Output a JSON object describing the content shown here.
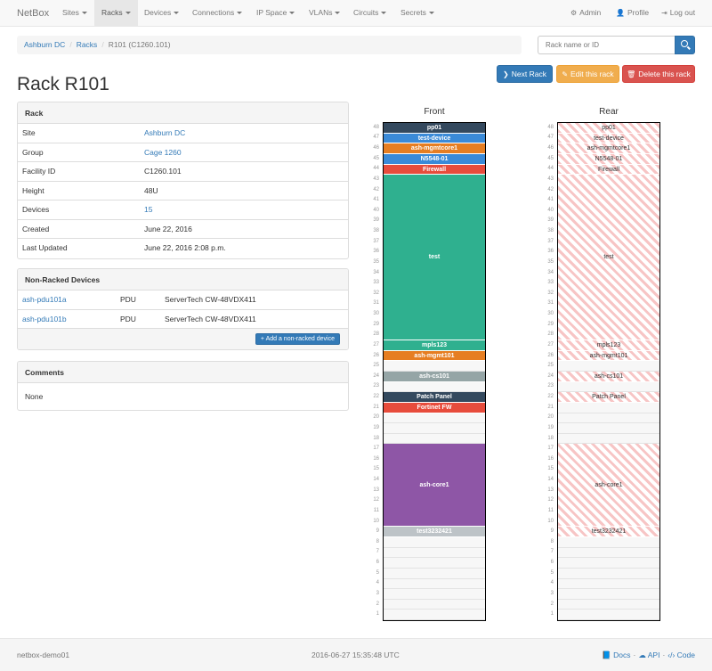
{
  "navbar": {
    "brand": "NetBox",
    "menus": [
      {
        "label": "Sites",
        "name": "nav-sites"
      },
      {
        "label": "Racks",
        "name": "nav-racks"
      },
      {
        "label": "Devices",
        "name": "nav-devices"
      },
      {
        "label": "Connections",
        "name": "nav-connections"
      },
      {
        "label": "IP Space",
        "name": "nav-ip-space"
      },
      {
        "label": "VLANs",
        "name": "nav-vlans"
      },
      {
        "label": "Circuits",
        "name": "nav-circuits"
      },
      {
        "label": "Secrets",
        "name": "nav-secrets"
      }
    ],
    "active_menu": "Racks",
    "admin": "Admin",
    "profile": "Profile",
    "logout": "Log out"
  },
  "breadcrumb": {
    "site": "Ashburn DC",
    "racks": "Racks",
    "current": "R101 (C1260.101)"
  },
  "search": {
    "placeholder": "Rack name or ID"
  },
  "actions": {
    "next_rack": "Next Rack",
    "edit_rack": "Edit this rack",
    "delete_rack": "Delete this rack"
  },
  "page_title": "Rack R101",
  "rack_panel": {
    "heading": "Rack",
    "rows": [
      {
        "label": "Site",
        "value": "Ashburn DC",
        "link": true
      },
      {
        "label": "Group",
        "value": "Cage 1260",
        "link": true
      },
      {
        "label": "Facility ID",
        "value": "C1260.101",
        "link": false
      },
      {
        "label": "Height",
        "value": "48U",
        "link": false
      },
      {
        "label": "Devices",
        "value": "15",
        "link": true
      },
      {
        "label": "Created",
        "value": "June 22, 2016",
        "link": false
      },
      {
        "label": "Last Updated",
        "value": "June 22, 2016 2:08 p.m.",
        "link": false
      }
    ]
  },
  "nonracked_panel": {
    "heading": "Non-Racked Devices",
    "rows": [
      {
        "name": "ash-pdu101a",
        "role": "PDU",
        "type": "ServerTech CW-48VDX411"
      },
      {
        "name": "ash-pdu101b",
        "role": "PDU",
        "type": "ServerTech CW-48VDX411"
      }
    ],
    "add_button": "Add a non-racked device"
  },
  "comments_panel": {
    "heading": "Comments",
    "body": "None"
  },
  "rack_elevation": {
    "front_label": "Front",
    "rear_label": "Rear",
    "height_units": 48,
    "front_devices": [
      {
        "name": "pp01",
        "top_u": 48,
        "units": 1,
        "color": "#34495e"
      },
      {
        "name": "test-device",
        "top_u": 47,
        "units": 1,
        "color": "#3a8ad8"
      },
      {
        "name": "ash-mgmtcore1",
        "top_u": 46,
        "units": 1,
        "color": "#e67e22"
      },
      {
        "name": "N5548-01",
        "top_u": 45,
        "units": 1,
        "color": "#3a8ad8"
      },
      {
        "name": "Firewall",
        "top_u": 44,
        "units": 1,
        "color": "#e74c3c"
      },
      {
        "name": "test",
        "top_u": 43,
        "units": 16,
        "color": "#2fb08f"
      },
      {
        "name": "mpls123",
        "top_u": 27,
        "units": 1,
        "color": "#2fb08f"
      },
      {
        "name": "ash-mgmt101",
        "top_u": 26,
        "units": 1,
        "color": "#e67e22"
      },
      {
        "name": "ash-cs101",
        "top_u": 24,
        "units": 1,
        "color": "#95a5a6"
      },
      {
        "name": "Patch Panel",
        "top_u": 22,
        "units": 1,
        "color": "#34495e"
      },
      {
        "name": "Fortinet FW",
        "top_u": 21,
        "units": 1,
        "color": "#e74c3c"
      },
      {
        "name": "ash-core1",
        "top_u": 17,
        "units": 8,
        "color": "#8e56a6"
      },
      {
        "name": "test3232421",
        "top_u": 9,
        "units": 1,
        "color": "#bdc3c7"
      }
    ],
    "rear_devices": [
      {
        "name": "pp01",
        "top_u": 48,
        "units": 1
      },
      {
        "name": "test-device",
        "top_u": 47,
        "units": 1
      },
      {
        "name": "ash-mgmtcore1",
        "top_u": 46,
        "units": 1
      },
      {
        "name": "N5548-01",
        "top_u": 45,
        "units": 1
      },
      {
        "name": "Firewall",
        "top_u": 44,
        "units": 1
      },
      {
        "name": "test",
        "top_u": 43,
        "units": 16
      },
      {
        "name": "mpls123",
        "top_u": 27,
        "units": 1
      },
      {
        "name": "ash-mgmt101",
        "top_u": 26,
        "units": 1
      },
      {
        "name": "ash-cs101",
        "top_u": 24,
        "units": 1
      },
      {
        "name": "Patch Panel",
        "top_u": 22,
        "units": 1
      },
      {
        "name": "ash-core1",
        "top_u": 17,
        "units": 8
      },
      {
        "name": "test3232421",
        "top_u": 9,
        "units": 1
      }
    ]
  },
  "footer": {
    "hostname": "netbox-demo01",
    "timestamp": "2016-06-27 15:35:48 UTC",
    "docs": "Docs",
    "api": "API",
    "code": "Code"
  }
}
